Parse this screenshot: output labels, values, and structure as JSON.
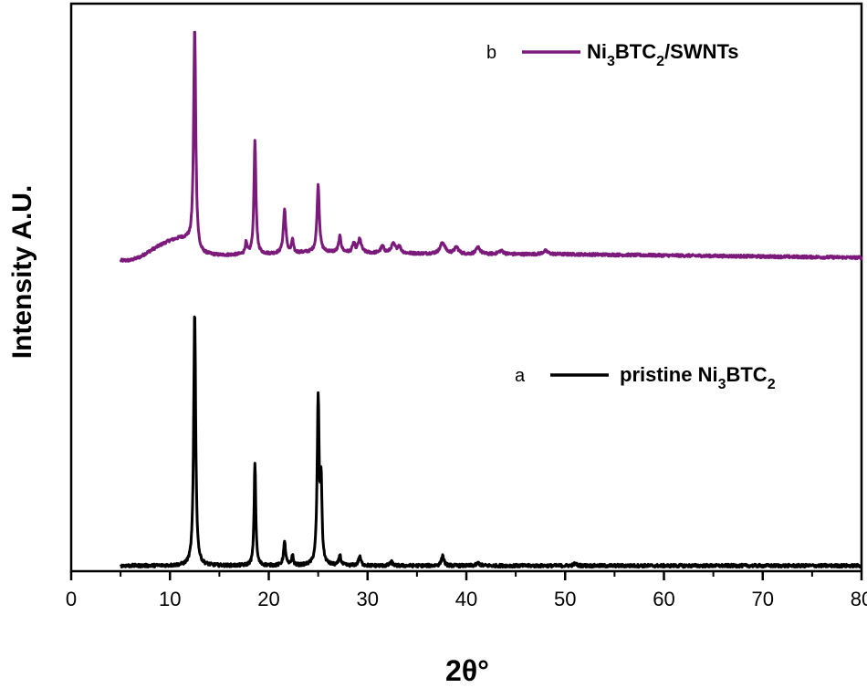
{
  "chart_data": {
    "type": "line",
    "xlabel": "2θ°",
    "ylabel": "Intensity A.U.",
    "xlim": [
      0,
      80
    ],
    "xticks": [
      "0",
      "10",
      "20",
      "30",
      "40",
      "50",
      "60",
      "70",
      "80"
    ],
    "grid": false,
    "legend_placement": "upper-right, one entry above each curve",
    "colors": {
      "a": "#000000",
      "b": "#7b1a7b"
    },
    "series": [
      {
        "letter": "b",
        "name": "Ni3BTC2/SWNTs",
        "name_parts": {
          "p1": "Ni",
          "s1": "3",
          "p2": "BTC",
          "s2": "2",
          "p3": "/SWNTs"
        },
        "color": "#7b1a7b",
        "baseline_points": [
          [
            5.0,
            0.002
          ],
          [
            6.0,
            0.003
          ],
          [
            7.0,
            0.018
          ],
          [
            8.0,
            0.045
          ],
          [
            9.0,
            0.07
          ],
          [
            10.0,
            0.09
          ],
          [
            11.0,
            0.1
          ],
          [
            11.7,
            0.095
          ],
          [
            13.0,
            0.03
          ],
          [
            15.0,
            0.025
          ],
          [
            20.0,
            0.03
          ],
          [
            25.0,
            0.04
          ],
          [
            30.0,
            0.035
          ],
          [
            40.0,
            0.03
          ],
          [
            50.0,
            0.03
          ],
          [
            60.0,
            0.025
          ],
          [
            70.0,
            0.02
          ],
          [
            80.0,
            0.015
          ]
        ],
        "peaks": [
          [
            12.5,
            0.99,
            0.13
          ],
          [
            17.7,
            0.05,
            0.12
          ],
          [
            18.6,
            0.51,
            0.12
          ],
          [
            21.6,
            0.195,
            0.15
          ],
          [
            22.4,
            0.06,
            0.1
          ],
          [
            25.0,
            0.3,
            0.14
          ],
          [
            27.2,
            0.07,
            0.15
          ],
          [
            28.6,
            0.04,
            0.15
          ],
          [
            29.2,
            0.06,
            0.2
          ],
          [
            31.5,
            0.03,
            0.2
          ],
          [
            32.6,
            0.04,
            0.25
          ],
          [
            33.2,
            0.03,
            0.2
          ],
          [
            37.6,
            0.05,
            0.3
          ],
          [
            39.0,
            0.03,
            0.25
          ],
          [
            41.2,
            0.03,
            0.25
          ],
          [
            43.5,
            0.015,
            0.3
          ],
          [
            48.0,
            0.015,
            0.3
          ]
        ]
      },
      {
        "letter": "a",
        "name": "pristine Ni3BTC2",
        "name_parts": {
          "p1": "pristine Ni",
          "s1": "3",
          "p2": "BTC",
          "s2": "2",
          "p3": ""
        },
        "color": "#000000",
        "baseline_points": [
          [
            5.0,
            0.0
          ],
          [
            80.0,
            0.0
          ]
        ],
        "peaks": [
          [
            12.5,
            1.0,
            0.12
          ],
          [
            18.6,
            0.405,
            0.1
          ],
          [
            21.6,
            0.09,
            0.13
          ],
          [
            22.4,
            0.04,
            0.1
          ],
          [
            25.0,
            0.65,
            0.12
          ],
          [
            25.3,
            0.3,
            0.1
          ],
          [
            27.2,
            0.04,
            0.12
          ],
          [
            29.2,
            0.035,
            0.15
          ],
          [
            32.4,
            0.015,
            0.15
          ],
          [
            37.6,
            0.04,
            0.15
          ],
          [
            41.2,
            0.01,
            0.2
          ],
          [
            51.0,
            0.008,
            0.2
          ]
        ]
      }
    ]
  }
}
